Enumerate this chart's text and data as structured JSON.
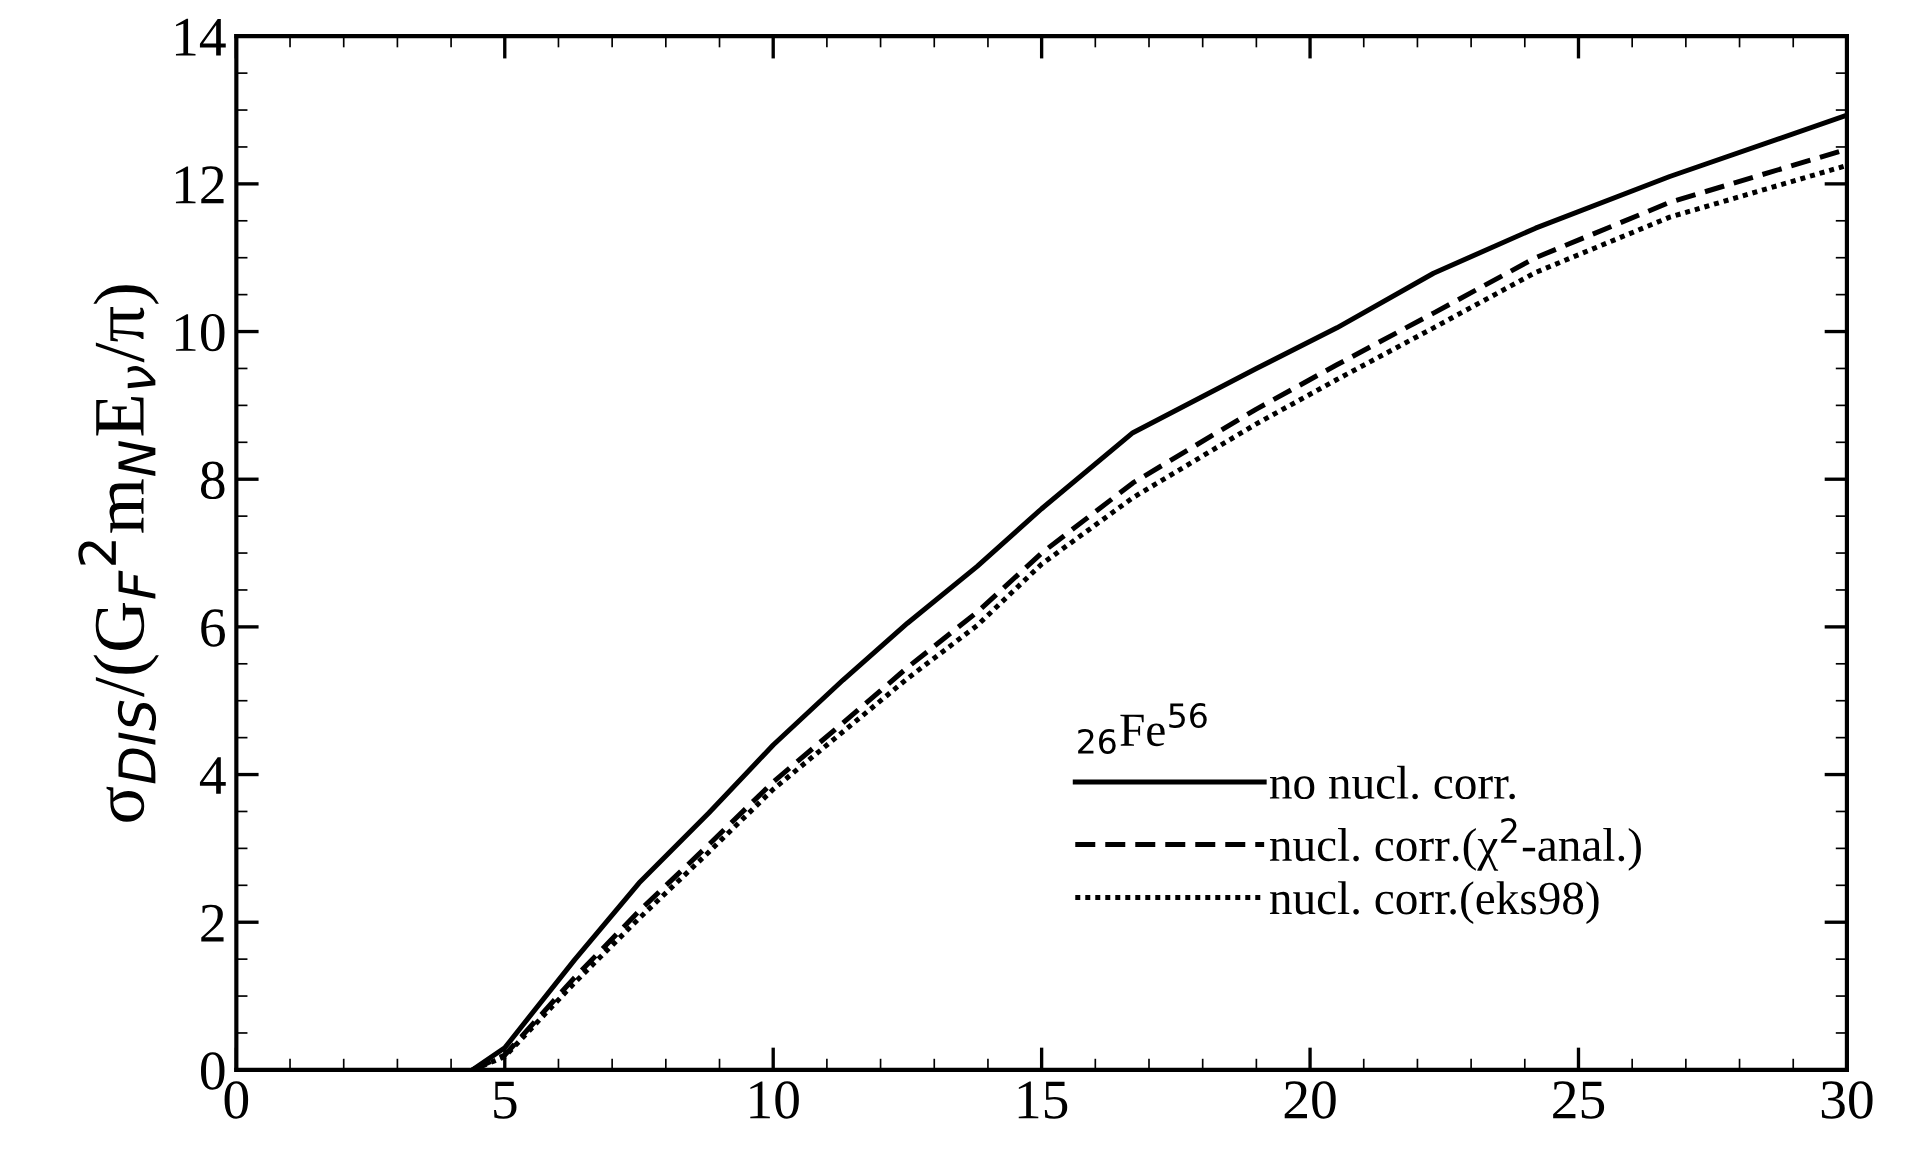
{
  "chart_data": {
    "type": "line",
    "ylabel": "σ$_{DIS}$/(G$_{F}$$^{2}$m$_{N}$E$_{ν}$/π)",
    "legend_title": "$_{26}$Fe$^{56}$",
    "x": [
      4.4,
      5,
      6.3,
      7.5,
      8.8,
      10,
      11.3,
      12.5,
      13.8,
      15,
      16.7,
      19,
      20.5,
      22.3,
      24.2,
      26.7,
      30
    ],
    "series": [
      {
        "name": "no nucl. corr.",
        "color": "#000000",
        "line_style": "solid",
        "values": [
          0,
          0.3,
          1.49,
          2.53,
          3.48,
          4.4,
          5.28,
          6.05,
          6.82,
          7.6,
          8.63,
          9.5,
          10.05,
          10.79,
          11.4,
          12.1,
          12.93
        ]
      },
      {
        "name": "nucl. corr.(χ$^{2}$-anal.)",
        "color": "#000000",
        "line_style": "dashed",
        "values": [
          0,
          0.2,
          1.25,
          2.15,
          3.05,
          3.9,
          4.7,
          5.45,
          6.2,
          7.0,
          7.95,
          8.95,
          9.55,
          10.25,
          11.0,
          11.75,
          12.47
        ]
      },
      {
        "name": "nucl. corr.(eks98)",
        "color": "#000000",
        "line_style": "dotted",
        "values": [
          0,
          0.18,
          1.18,
          2.05,
          2.95,
          3.8,
          4.58,
          5.3,
          6.02,
          6.85,
          7.75,
          8.75,
          9.35,
          10.05,
          10.8,
          11.55,
          12.25
        ]
      }
    ],
    "xlim": [
      0,
      30
    ],
    "xticks": [
      0,
      5,
      10,
      15,
      20,
      25,
      30
    ],
    "ylim": [
      0,
      14
    ],
    "yticks": [
      0,
      2,
      4,
      6,
      8,
      10,
      12,
      14
    ],
    "grid": false,
    "legend": "lower right",
    "marker": "none"
  }
}
